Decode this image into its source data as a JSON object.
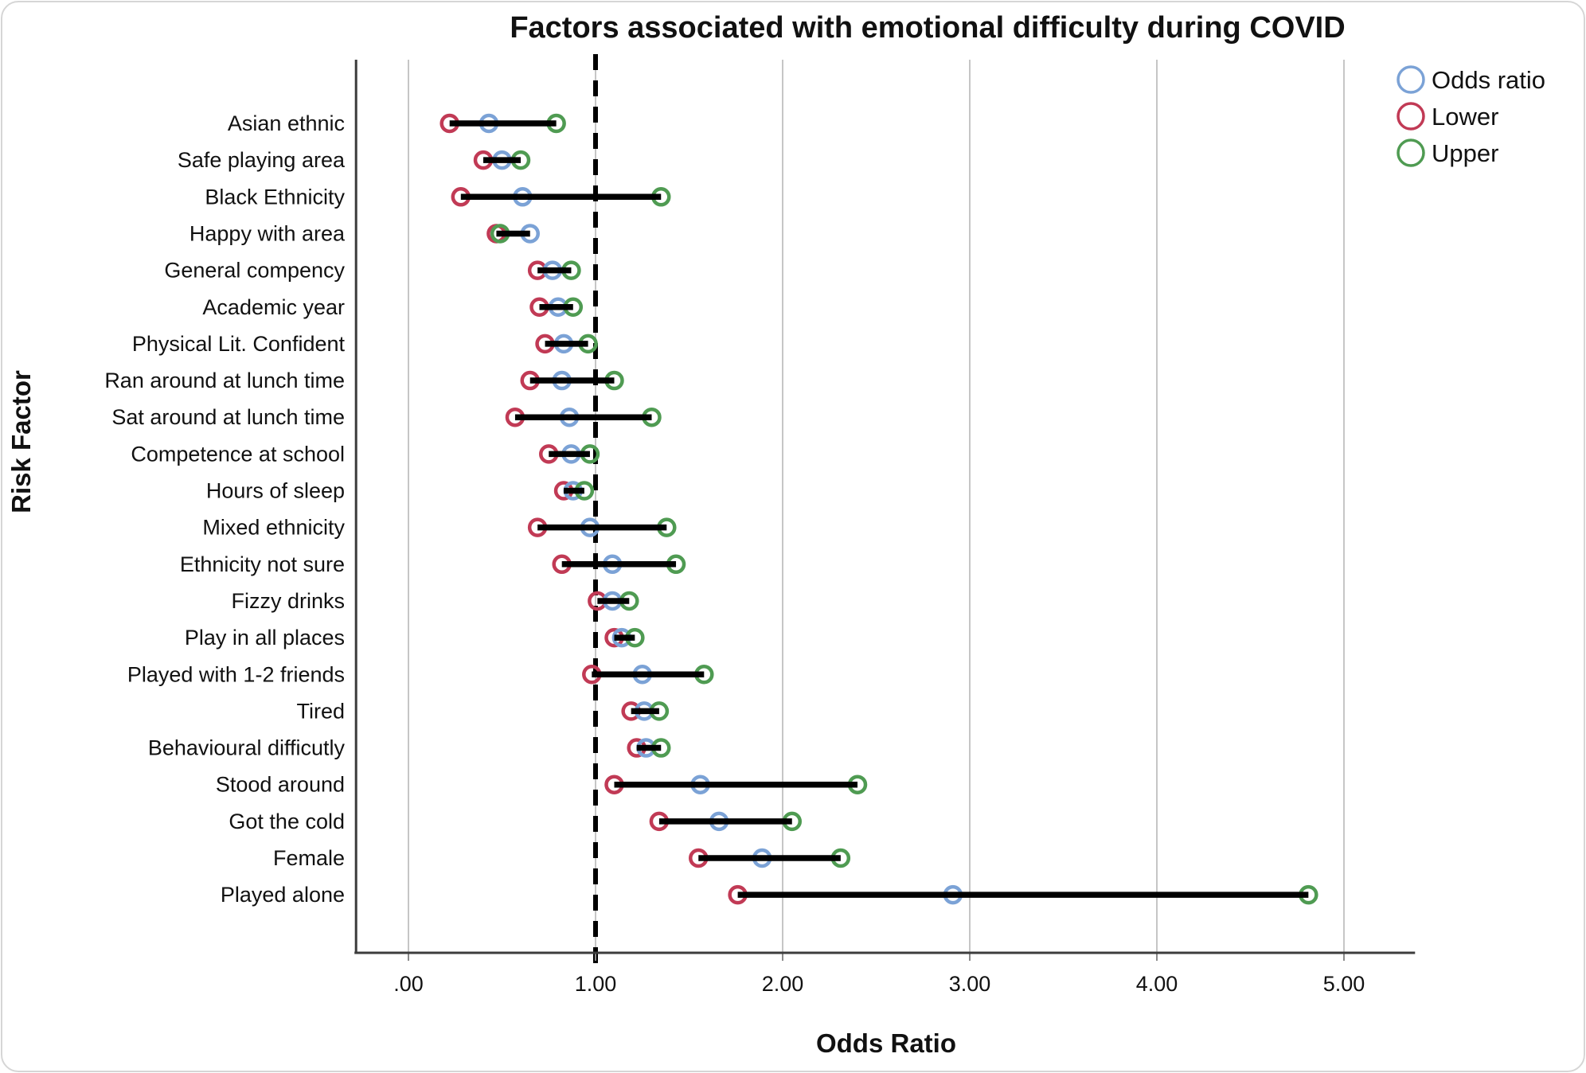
{
  "figure": {
    "background": "#ffffff",
    "card_border_color": "#d6d6d6",
    "axis_color": "#3c3c3c",
    "gridline_color": "#c6c6c6",
    "interval_line_color": "#000000",
    "reference_line_color": "#000000"
  },
  "chart_data": {
    "type": "scatter",
    "subtype": "forest-plot",
    "title": "Factors associated with emotional difficulty during COVID",
    "xlabel": "Odds Ratio",
    "ylabel": "Risk Factor",
    "grid": true,
    "legend_position": "top-right",
    "legend": [
      {
        "label": "Odds ratio",
        "color": "#7ba2d6"
      },
      {
        "label": "Lower",
        "color": "#c13a55"
      },
      {
        "label": "Upper",
        "color": "#4f9b52"
      }
    ],
    "x_axis": {
      "min": -0.28,
      "max": 5.38,
      "tick_labels": [
        ".00",
        "1.00",
        "2.00",
        "3.00",
        "4.00",
        "5.00"
      ],
      "tick_values": [
        0,
        1,
        2,
        3,
        4,
        5
      ]
    },
    "reference_line_x": 1.0,
    "categories": [
      "Asian ethnic",
      "Safe playing area",
      "Black Ethnicity",
      "Happy with area",
      "General compency",
      "Academic year",
      "Physical Lit. Confident",
      "Ran around at lunch time",
      "Sat around at lunch time",
      "Competence at school",
      "Hours of sleep",
      "Mixed ethnicity",
      "Ethnicity not sure",
      "Fizzy drinks",
      "Play in all places",
      "Played with 1-2 friends",
      "Tired",
      "Behavioural difficutly",
      "Stood around",
      "Got the cold",
      "Female",
      "Played alone"
    ],
    "series": [
      {
        "name": "Lower",
        "color": "#c13a55",
        "values": [
          0.22,
          0.4,
          0.28,
          0.47,
          0.69,
          0.7,
          0.73,
          0.65,
          0.57,
          0.75,
          0.83,
          0.69,
          0.82,
          1.01,
          1.1,
          0.98,
          1.19,
          1.22,
          1.1,
          1.34,
          1.55,
          1.76
        ]
      },
      {
        "name": "Odds ratio",
        "color": "#7ba2d6",
        "values": [
          0.43,
          0.5,
          0.61,
          0.65,
          0.77,
          0.8,
          0.83,
          0.82,
          0.86,
          0.87,
          0.88,
          0.97,
          1.09,
          1.09,
          1.14,
          1.25,
          1.26,
          1.27,
          1.56,
          1.66,
          1.89,
          2.91
        ]
      },
      {
        "name": "Upper",
        "color": "#4f9b52",
        "values": [
          0.79,
          0.6,
          1.35,
          0.49,
          0.87,
          0.88,
          0.96,
          1.1,
          1.3,
          0.97,
          0.94,
          1.38,
          1.43,
          1.18,
          1.21,
          1.58,
          1.34,
          1.35,
          2.4,
          2.05,
          2.31,
          4.81
        ]
      }
    ]
  }
}
